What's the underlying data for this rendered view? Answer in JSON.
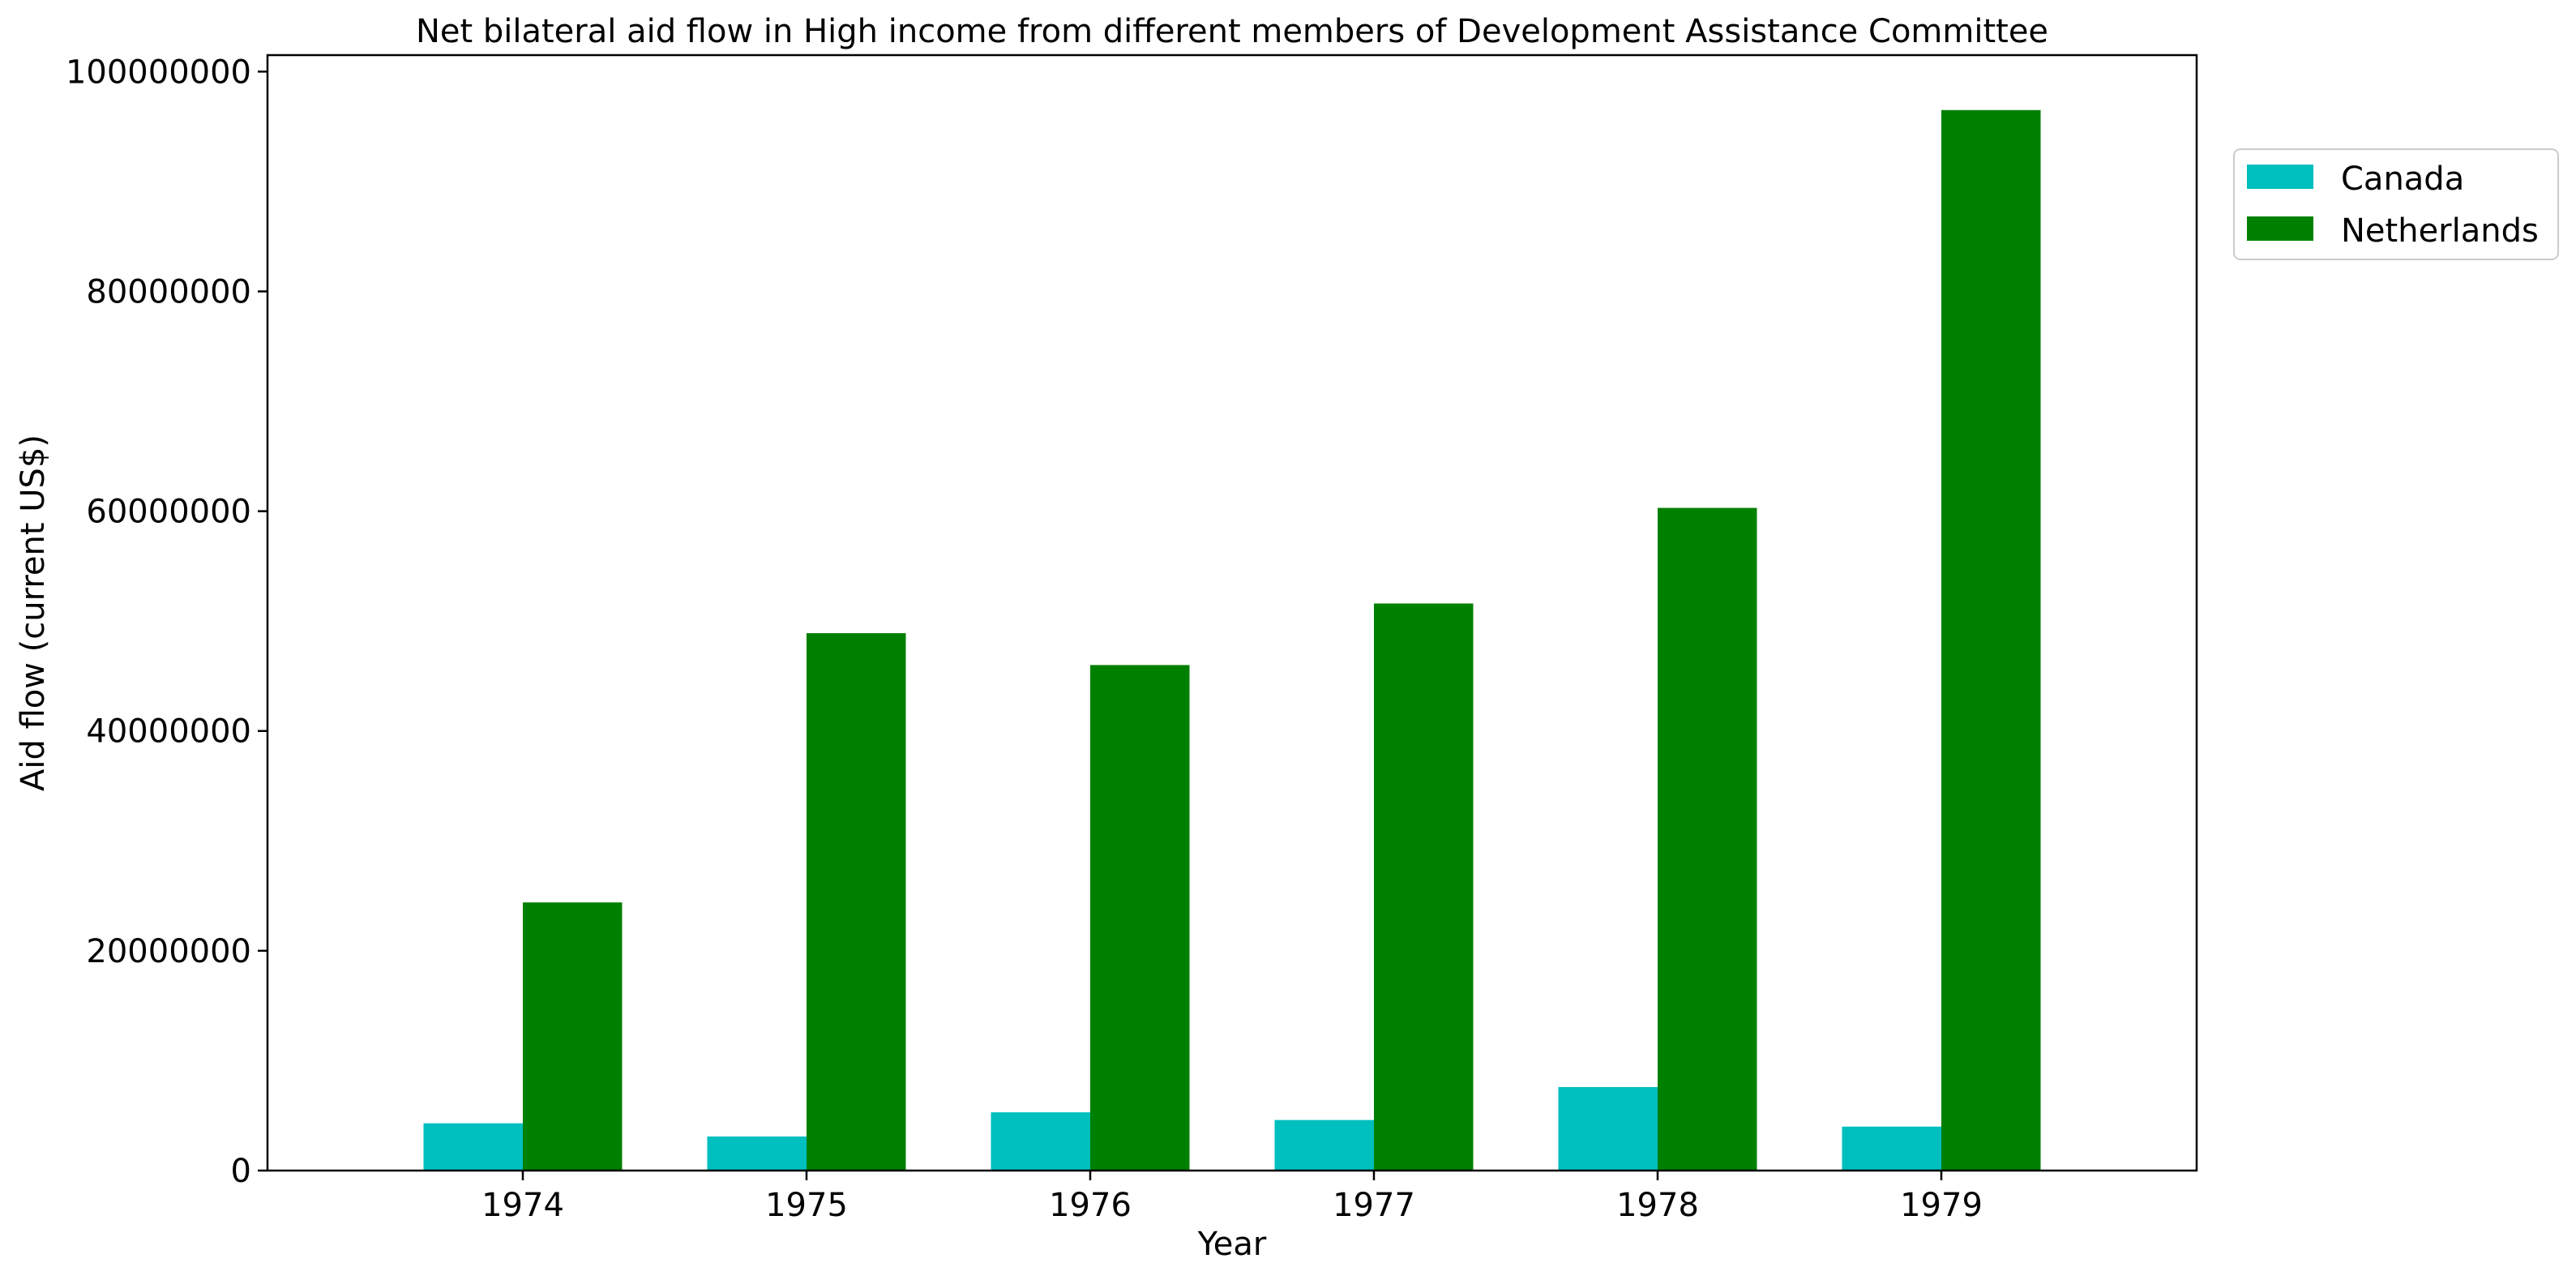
{
  "chart_data": {
    "type": "bar",
    "title": "Net bilateral aid flow in High income from different members of Development Assistance Committee",
    "xlabel": "Year",
    "ylabel": "Aid flow (current US$)",
    "categories": [
      "1974",
      "1975",
      "1976",
      "1977",
      "1978",
      "1979"
    ],
    "series": [
      {
        "name": "Canada",
        "color": "#00bfbf",
        "values": [
          4300000,
          3100000,
          5300000,
          4600000,
          7600000,
          4000000
        ]
      },
      {
        "name": "Netherlands",
        "color": "#008000",
        "values": [
          24400000,
          48900000,
          46000000,
          51600000,
          60300000,
          96500000
        ]
      }
    ],
    "ylim": [
      0,
      101500000
    ],
    "yticks": [
      0,
      20000000,
      40000000,
      60000000,
      80000000,
      100000000
    ],
    "ytick_labels": [
      "0",
      "20000000",
      "40000000",
      "60000000",
      "80000000",
      "100000000"
    ],
    "grid": false,
    "legend_position": "top-right outside plot"
  }
}
